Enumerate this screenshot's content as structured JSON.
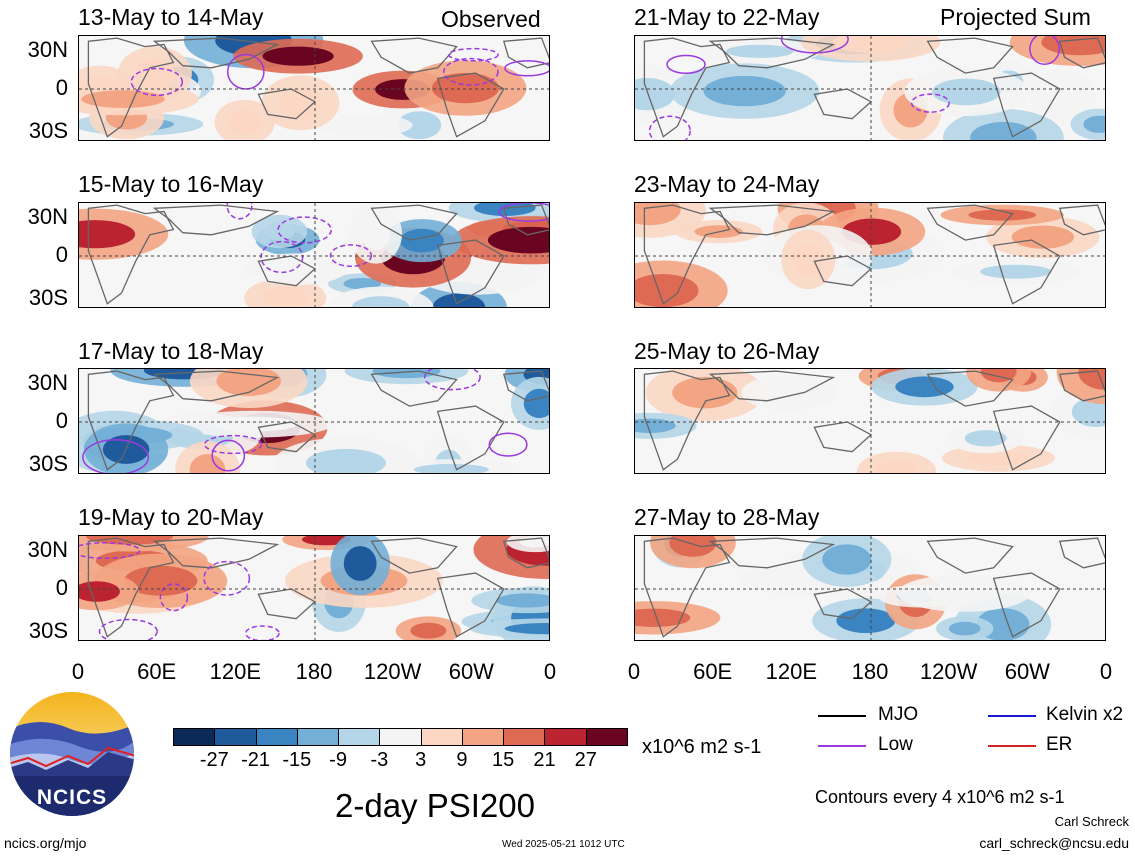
{
  "panels": [
    {
      "title": "13-May to 14-May",
      "tag": "Observed"
    },
    {
      "title": "15-May to 16-May",
      "tag": ""
    },
    {
      "title": "17-May to 18-May",
      "tag": ""
    },
    {
      "title": "19-May to 20-May",
      "tag": ""
    },
    {
      "title": "21-May to 22-May",
      "tag": "Projected Sum"
    },
    {
      "title": "23-May to 24-May",
      "tag": ""
    },
    {
      "title": "25-May to 26-May",
      "tag": ""
    },
    {
      "title": "27-May to 28-May",
      "tag": ""
    }
  ],
  "lat_labels": [
    "30N",
    "0",
    "30S"
  ],
  "lon_labels": [
    "0",
    "60E",
    "120E",
    "180",
    "120W",
    "60W",
    "0"
  ],
  "colorbar": {
    "labels": [
      "-27",
      "-21",
      "-15",
      "-9",
      "-3",
      "3",
      "9",
      "15",
      "21",
      "27"
    ],
    "colors": [
      "#0b2a55",
      "#1f5a9c",
      "#3a84c1",
      "#73afd6",
      "#b5d6e8",
      "#f4f4f4",
      "#fbd7c4",
      "#f3a583",
      "#de6a53",
      "#bb2331",
      "#6a0521"
    ],
    "unit": "x10^6 m2 s-1"
  },
  "legend": {
    "items": [
      {
        "label": "MJO",
        "color": "#000000"
      },
      {
        "label": "Kelvin x2",
        "color": "#1a1ad6"
      },
      {
        "label": "Low",
        "color": "#9a39e0"
      },
      {
        "label": "ER",
        "color": "#d4221f"
      }
    ],
    "contours_note": "Contours every 4 x10^6 m2 s-1"
  },
  "main_title": "2-day PSI200",
  "logo_text": "NCICS",
  "footer": {
    "site": "ncics.org/mjo",
    "timestamp": "Wed 2025-05-21 1012 UTC",
    "author": "Carl Schreck",
    "email": "carl_schreck@ncsu.edu"
  },
  "colors": {
    "land": "#666666",
    "contour": "#9a39e0"
  }
}
